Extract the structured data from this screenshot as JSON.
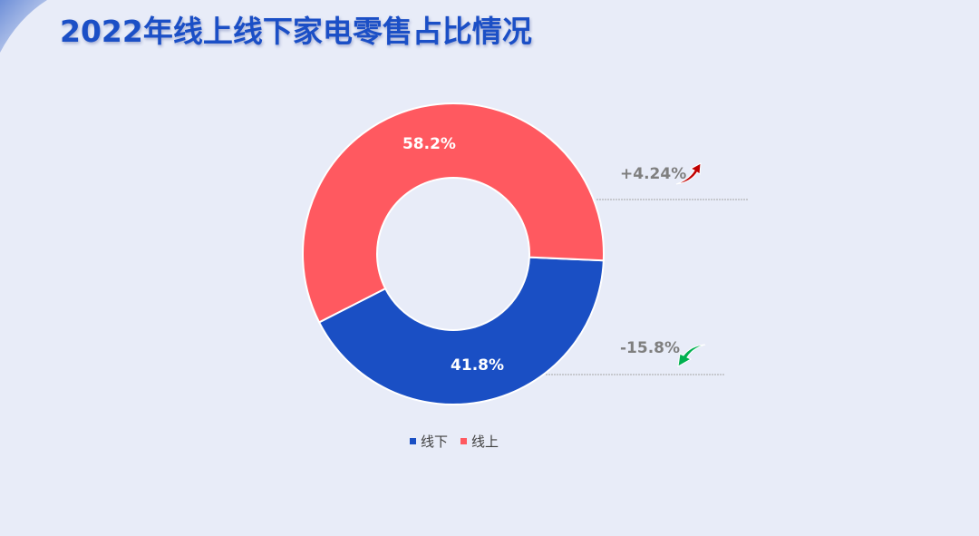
{
  "title": "2022年线上线下家电零售占比情况",
  "chart_data": {
    "type": "pie",
    "subtype": "donut",
    "title": "2022年线上线下家电零售占比情况",
    "categories": [
      "线下",
      "线上"
    ],
    "values": [
      41.8,
      58.2
    ],
    "labels": [
      "41.8%",
      "58.2%"
    ],
    "colors": [
      "#1a4fc4",
      "#ff5960"
    ],
    "legend_placement": "bottom",
    "annotations": [
      {
        "series": "线上",
        "text": "+4.24%",
        "direction": "up",
        "arrow_color": "#c00000"
      },
      {
        "series": "线下",
        "text": "-15.8%",
        "direction": "down",
        "arrow_color": "#00b050"
      }
    ]
  }
}
